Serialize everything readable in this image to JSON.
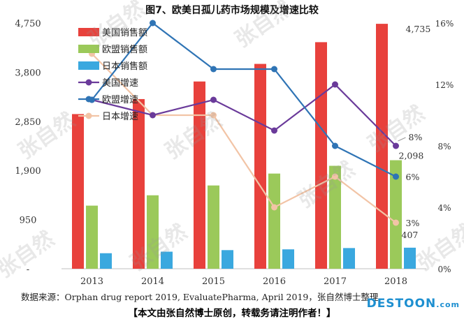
{
  "title": "图7、欧美日孤儿药市场规模及增速比较",
  "source": "数据来源：Orphan drug report 2019, EvaluatePharma, April 2019，张自然博士整理",
  "notice": "【本文由张自然博士原创，转载务请注明作者！】",
  "logo": {
    "main": "DESTOON",
    "suffix": ".com"
  },
  "watermark": "张自然",
  "chart_data": {
    "type": "bar+line",
    "categories": [
      "2013",
      "2014",
      "2015",
      "2016",
      "2017",
      "2018"
    ],
    "left_axis": {
      "min": 0,
      "max": 4750,
      "ticks": [
        "-",
        "950",
        "1,900",
        "2,850",
        "3,800",
        "4,750"
      ]
    },
    "right_axis": {
      "min": 0,
      "max": 16,
      "ticks": [
        "0%",
        "4%",
        "8%",
        "12%",
        "16%"
      ]
    },
    "bar_series": [
      {
        "name": "美国销售额",
        "color": "#e8413c",
        "values": [
          2990,
          3280,
          3620,
          3960,
          4380,
          4735
        ]
      },
      {
        "name": "欧盟销售额",
        "color": "#9bc95a",
        "values": [
          1220,
          1420,
          1610,
          1840,
          1990,
          2098
        ]
      },
      {
        "name": "日本销售额",
        "color": "#3aa8df",
        "values": [
          300,
          330,
          360,
          375,
          400,
          407
        ]
      }
    ],
    "line_series": [
      {
        "name": "美国增速",
        "color": "#6a3a9a",
        "values": [
          11.0,
          10.0,
          11.0,
          9.0,
          12.0,
          8.0
        ]
      },
      {
        "name": "欧盟增速",
        "color": "#2f74b5",
        "values": [
          11.0,
          16.0,
          13.0,
          13.0,
          8.0,
          6.0
        ]
      },
      {
        "name": "日本增速",
        "color": "#f2c4a6",
        "values": [
          14.0,
          10.0,
          10.0,
          4.0,
          6.0,
          3.0
        ]
      }
    ],
    "data_labels": {
      "us_sales_2018": "4,735",
      "eu_sales_2018": "2,098",
      "jp_sales_2018": "407",
      "us_growth_2018": "8%",
      "eu_growth_2018": "6%",
      "jp_growth_2018": "3%"
    }
  }
}
